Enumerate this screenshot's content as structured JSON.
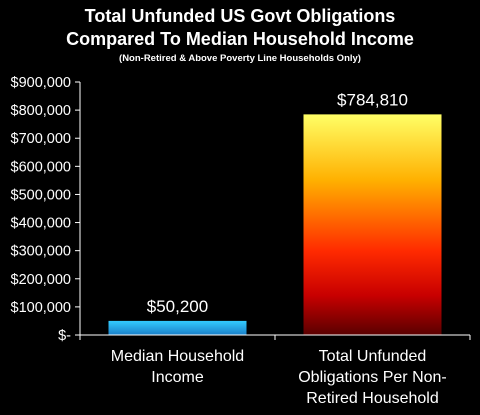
{
  "chart_data": {
    "type": "bar",
    "title_lines": [
      "Total Unfunded US Govt Obligations",
      "Compared To Median Household Income"
    ],
    "subtitle": "(Non-Retired & Above Poverty Line Households Only)",
    "categories": [
      [
        "Median Household",
        "Income"
      ],
      [
        "Total Unfunded",
        "Obligations Per Non-",
        "Retired Household"
      ]
    ],
    "values": [
      50200,
      784810
    ],
    "value_labels": [
      "$50,200",
      "$784,810"
    ],
    "ylim": [
      0,
      900000
    ],
    "yticks": [
      0,
      100000,
      200000,
      300000,
      400000,
      500000,
      600000,
      700000,
      800000,
      900000
    ],
    "ytick_labels": [
      "$-",
      "$100,000",
      "$200,000",
      "$300,000",
      "$400,000",
      "$500,000",
      "$600,000",
      "$700,000",
      "$800,000",
      "$900,000"
    ],
    "grid": false,
    "colors": {
      "bar1": [
        "#33ccff",
        "#1a7fc8"
      ],
      "bar2": [
        "#ffff66",
        "#ffb000",
        "#ff2a00",
        "#c80000",
        "#5a0000"
      ],
      "axis": "#ffffff",
      "background": "#000000"
    }
  }
}
